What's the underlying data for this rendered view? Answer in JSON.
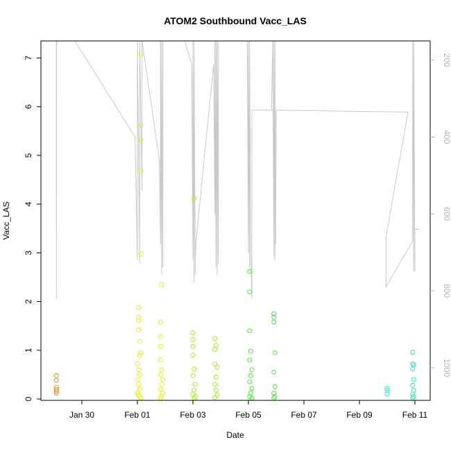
{
  "chart_data": {
    "type": "scatter",
    "title": "ATOM2 Southbound Vacc_LAS",
    "xlabel": "Date",
    "ylabel": "Vacc_LAS",
    "ylim": [
      0,
      7.35
    ],
    "y2lim": [
      1085,
      150
    ],
    "grid": false,
    "x_ticks": [
      "Jan 30",
      "Feb 01",
      "Feb 03",
      "Feb 05",
      "Feb 07",
      "Feb 09",
      "Feb 11"
    ],
    "y_ticks": [
      "0",
      "1",
      "2",
      "3",
      "4",
      "5",
      "6",
      "7"
    ],
    "y2_ticks": [
      "200",
      "400",
      "600",
      "800",
      "1000"
    ],
    "series": [
      {
        "color": "#f08c1e",
        "points": [
          [
            "Jan 29 02:00",
            0.48
          ],
          [
            "Jan 29 02:00",
            0.38
          ],
          [
            "Jan 29 02:00",
            0.24
          ],
          [
            "Jan 29 02:00",
            0.2
          ],
          [
            "Jan 29 02:00",
            0.16
          ],
          [
            "Jan 29 02:00",
            0.12
          ]
        ]
      },
      {
        "color": "#e6ee22",
        "points": [
          [
            "Feb 01 01:00",
            1.88
          ],
          [
            "Feb 01 01:00",
            1.68
          ],
          [
            "Feb 01 01:00",
            1.6
          ],
          [
            "Feb 01 01:00",
            1.42
          ],
          [
            "Feb 01 02:00",
            1.18
          ],
          [
            "Feb 01 03:00",
            7.08
          ],
          [
            "Feb 01 03:00",
            5.62
          ],
          [
            "Feb 01 03:00",
            5.32
          ],
          [
            "Feb 01 03:00",
            4.68
          ],
          [
            "Feb 01 03:00",
            2.98
          ],
          [
            "Feb 01 03:00",
            0.95
          ],
          [
            "Feb 01 02:00",
            0.9
          ],
          [
            "Feb 01 00:00",
            0.72
          ],
          [
            "Feb 01 01:00",
            0.6
          ],
          [
            "Feb 01 02:00",
            0.5
          ],
          [
            "Feb 01 00:00",
            0.4
          ],
          [
            "Feb 01 01:00",
            0.3
          ],
          [
            "Feb 01 02:00",
            0.2
          ],
          [
            "Feb 01 00:00",
            0.12
          ],
          [
            "Feb 01 01:00",
            0.08
          ],
          [
            "Feb 01 02:00",
            0.05
          ],
          [
            "Feb 01 03:00",
            0.02
          ],
          [
            "Feb 01 20:00",
            1.58
          ],
          [
            "Feb 01 20:00",
            1.28
          ],
          [
            "Feb 01 20:00",
            1.08
          ],
          [
            "Feb 01 21:00",
            2.35
          ],
          [
            "Feb 01 20:00",
            0.8
          ],
          [
            "Feb 01 21:00",
            0.6
          ],
          [
            "Feb 01 20:00",
            0.5
          ],
          [
            "Feb 01 22:00",
            0.4
          ],
          [
            "Feb 01 21:00",
            0.3
          ],
          [
            "Feb 01 20:00",
            0.2
          ],
          [
            "Feb 01 22:00",
            0.12
          ],
          [
            "Feb 01 21:00",
            0.06
          ],
          [
            "Feb 01 20:00",
            0.02
          ]
        ]
      },
      {
        "color": "#9ef22a",
        "points": [
          [
            "Feb 03 00:00",
            1.36
          ],
          [
            "Feb 03 00:00",
            1.22
          ],
          [
            "Feb 03 00:00",
            1.08
          ],
          [
            "Feb 03 01:00",
            4.12
          ],
          [
            "Feb 03 00:00",
            0.9
          ],
          [
            "Feb 03 01:00",
            0.62
          ],
          [
            "Feb 03 00:00",
            0.48
          ],
          [
            "Feb 03 02:00",
            0.3
          ],
          [
            "Feb 03 01:00",
            0.18
          ],
          [
            "Feb 03 00:00",
            0.1
          ],
          [
            "Feb 03 02:00",
            0.05
          ],
          [
            "Feb 03 01:00",
            0.02
          ],
          [
            "Feb 03 19:00",
            1.24
          ],
          [
            "Feb 03 19:00",
            1.02
          ],
          [
            "Feb 03 20:00",
            1.1
          ],
          [
            "Feb 03 19:00",
            0.72
          ],
          [
            "Feb 03 21:00",
            0.65
          ],
          [
            "Feb 03 20:00",
            0.45
          ],
          [
            "Feb 03 19:00",
            0.3
          ],
          [
            "Feb 03 20:00",
            0.18
          ],
          [
            "Feb 03 21:00",
            0.08
          ],
          [
            "Feb 03 19:00",
            0.03
          ]
        ]
      },
      {
        "color": "#4aee38",
        "points": [
          [
            "Feb 05 01:00",
            2.62
          ],
          [
            "Feb 05 01:00",
            2.2
          ],
          [
            "Feb 05 01:00",
            1.4
          ],
          [
            "Feb 05 02:00",
            0.98
          ],
          [
            "Feb 05 01:00",
            0.8
          ],
          [
            "Feb 05 03:00",
            0.6
          ],
          [
            "Feb 05 02:00",
            0.48
          ],
          [
            "Feb 05 01:00",
            0.35
          ],
          [
            "Feb 05 03:00",
            0.22
          ],
          [
            "Feb 05 02:00",
            0.12
          ],
          [
            "Feb 05 01:00",
            0.05
          ],
          [
            "Feb 05 03:00",
            0.02
          ],
          [
            "Feb 05 22:00",
            1.75
          ],
          [
            "Feb 05 22:00",
            1.68
          ],
          [
            "Feb 05 22:00",
            1.58
          ],
          [
            "Feb 05 23:00",
            0.95
          ],
          [
            "Feb 05 22:00",
            0.55
          ],
          [
            "Feb 05 23:00",
            0.25
          ],
          [
            "Feb 05 22:00",
            0.12
          ],
          [
            "Feb 05 23:00",
            0.05
          ],
          [
            "Feb 05 22:00",
            0.02
          ]
        ]
      },
      {
        "color": "#26eec4",
        "points": [
          [
            "Feb 10 00:00",
            0.22
          ],
          [
            "Feb 10 00:00",
            0.18
          ],
          [
            "Feb 10 00:00",
            0.1
          ],
          [
            "Feb 10 22:00",
            0.96
          ],
          [
            "Feb 10 22:00",
            0.72
          ],
          [
            "Feb 10 23:00",
            0.7
          ],
          [
            "Feb 10 22:00",
            0.62
          ],
          [
            "Feb 10 23:00",
            0.4
          ],
          [
            "Feb 10 22:00",
            0.28
          ],
          [
            "Feb 10 23:00",
            0.18
          ],
          [
            "Feb 10 22:00",
            0.1
          ],
          [
            "Feb 10 23:00",
            0.05
          ],
          [
            "Feb 10 22:00",
            0.02
          ]
        ]
      }
    ],
    "depth_trace": {
      "color": "#c8c8c8",
      "points": [
        [
          "Jan 29 01:50",
          150
        ],
        [
          "Jan 29 02:00",
          820
        ],
        [
          "Jan 29 02:10",
          150
        ],
        [
          "Jan 29 18:00",
          150
        ],
        [
          "Jan 31 22:00",
          400
        ],
        [
          "Feb 01 00:00",
          720
        ],
        [
          "Feb 01 00:00",
          150
        ],
        [
          "Feb 01 02:00",
          730
        ],
        [
          "Feb 01 02:00",
          150
        ],
        [
          "Feb 01 04:00",
          540
        ],
        [
          "Feb 01 04:00",
          150
        ],
        [
          "Feb 01 19:00",
          460
        ],
        [
          "Feb 01 20:00",
          680
        ],
        [
          "Feb 01 20:00",
          150
        ],
        [
          "Feb 01 21:00",
          760
        ],
        [
          "Feb 01 21:00",
          150
        ],
        [
          "Feb 01 22:00",
          740
        ],
        [
          "Feb 01 22:00",
          150
        ],
        [
          "Feb 02 17:00",
          150
        ],
        [
          "Feb 02 23:00",
          210
        ],
        [
          "Feb 03 00:00",
          720
        ],
        [
          "Feb 03 00:00",
          150
        ],
        [
          "Feb 03 01:00",
          780
        ],
        [
          "Feb 03 01:00",
          150
        ],
        [
          "Feb 03 02:00",
          760
        ],
        [
          "Feb 03 02:00",
          720
        ],
        [
          "Feb 03 03:00",
          660
        ],
        [
          "Feb 03 18:00",
          210
        ],
        [
          "Feb 03 19:00",
          600
        ],
        [
          "Feb 03 19:00",
          150
        ],
        [
          "Feb 03 20:00",
          740
        ],
        [
          "Feb 03 20:00",
          150
        ],
        [
          "Feb 03 21:00",
          760
        ],
        [
          "Feb 03 21:00",
          150
        ],
        [
          "Feb 03 22:00",
          730
        ],
        [
          "Feb 03 22:00",
          150
        ],
        [
          "Feb 04 23:00",
          150
        ],
        [
          "Feb 05 00:00",
          700
        ],
        [
          "Feb 05 00:00",
          150
        ],
        [
          "Feb 05 01:00",
          740
        ],
        [
          "Feb 05 01:00",
          150
        ],
        [
          "Feb 05 02:00",
          700
        ],
        [
          "Feb 05 03:00",
          820
        ],
        [
          "Feb 05 03:00",
          330
        ],
        [
          "Feb 05 04:00",
          330
        ],
        [
          "Feb 05 21:00",
          330
        ],
        [
          "Feb 05 20:00",
          330
        ],
        [
          "Feb 05 21:00",
          150
        ],
        [
          "Feb 05 22:00",
          710
        ],
        [
          "Feb 05 22:00",
          150
        ],
        [
          "Feb 05 23:00",
          720
        ],
        [
          "Feb 05 23:00",
          150
        ],
        [
          "Feb 05 23:30",
          680
        ],
        [
          "Feb 06 00:00",
          330
        ],
        [
          "Feb 10 18:00",
          335
        ],
        [
          "Feb 09 23:00",
          660
        ],
        [
          "Feb 09 23:00",
          790
        ],
        [
          "Feb 10 22:00",
          670
        ],
        [
          "Feb 10 22:00",
          150
        ],
        [
          "Feb 10 23:00",
          750
        ],
        [
          "Feb 10 23:00",
          150
        ],
        [
          "Feb 11 00:00",
          750
        ],
        [
          "Feb 11 00:00",
          640
        ],
        [
          "Feb 11 04:00",
          640
        ]
      ]
    }
  }
}
